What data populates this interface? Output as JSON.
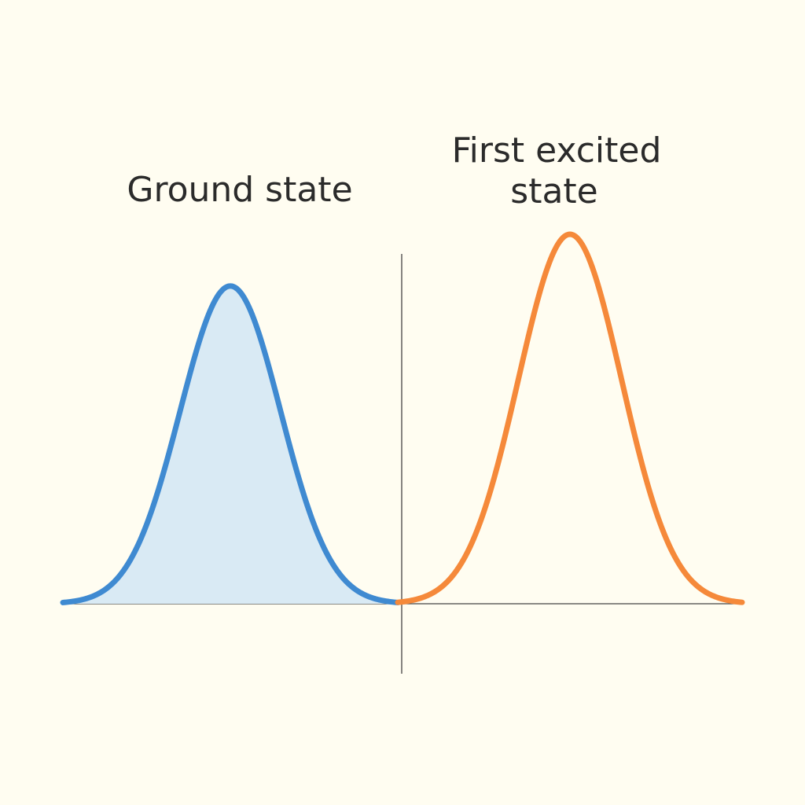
{
  "background": "#fffdf1",
  "labels": {
    "ground_state": "Ground state",
    "first_excited_line1": "First excited",
    "first_excited_line2": "state"
  },
  "colors": {
    "ground_curve": "#3f8ad1",
    "ground_fill": "#d9eaf4",
    "excited_curve": "#f5893a",
    "axis": "#444444"
  },
  "curves": [
    {
      "id": "ground",
      "mean": 0.5,
      "relative_height": 0.86,
      "filled": true
    },
    {
      "id": "excited",
      "mean": 0.5,
      "relative_height": 1.0,
      "filled": false
    }
  ]
}
